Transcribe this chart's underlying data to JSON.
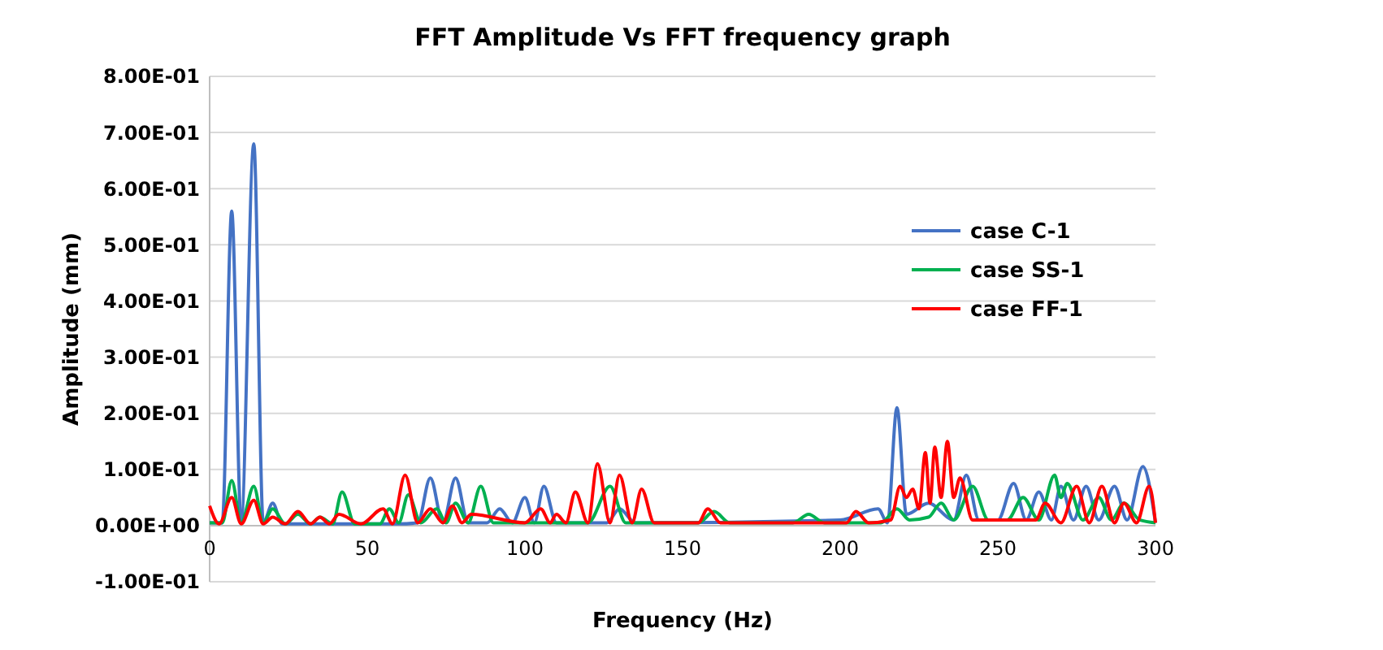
{
  "chart_data": {
    "type": "line",
    "title": "FFT Amplitude Vs FFT frequency graph",
    "xlabel": "Frequency (Hz)",
    "ylabel": "Amplitude (mm)",
    "xlim": [
      0,
      300
    ],
    "xticks": [
      0,
      50,
      100,
      150,
      200,
      250,
      300
    ],
    "ylim": [
      -0.1,
      0.8
    ],
    "yticks": [
      {
        "value": -0.1,
        "label": "-1.00E-01"
      },
      {
        "value": 0,
        "label": "0.00E+00"
      },
      {
        "value": 0.1,
        "label": "1.00E-01"
      },
      {
        "value": 0.2,
        "label": "2.00E-01"
      },
      {
        "value": 0.3,
        "label": "3.00E-01"
      },
      {
        "value": 0.4,
        "label": "4.00E-01"
      },
      {
        "value": 0.5,
        "label": "5.00E-01"
      },
      {
        "value": 0.6,
        "label": "6.00E-01"
      },
      {
        "value": 0.7,
        "label": "7.00E-01"
      },
      {
        "value": 0.8,
        "label": "8.00E-01"
      }
    ],
    "grid": "y",
    "legend": "right",
    "marker": "none",
    "line_style": "solid",
    "series": [
      {
        "name": "case C-1",
        "color": "#4472c4",
        "x": [
          0,
          4,
          7,
          10,
          14,
          17,
          20,
          23,
          60,
          66,
          70,
          74,
          78,
          82,
          88,
          92,
          96,
          100,
          103,
          106,
          110,
          126,
          130,
          135,
          200,
          212,
          215,
          218,
          221,
          228,
          236,
          240,
          244,
          250,
          255,
          259,
          263,
          267,
          270,
          274,
          278,
          282,
          287,
          291,
          296,
          300
        ],
        "values": [
          0.005,
          0.005,
          0.56,
          0.005,
          0.68,
          0.005,
          0.04,
          0.003,
          0.003,
          0.005,
          0.085,
          0.005,
          0.085,
          0.005,
          0.005,
          0.03,
          0.005,
          0.05,
          0.005,
          0.07,
          0.005,
          0.005,
          0.03,
          0.005,
          0.01,
          0.03,
          0.005,
          0.21,
          0.02,
          0.04,
          0.01,
          0.09,
          0.01,
          0.01,
          0.075,
          0.01,
          0.06,
          0.01,
          0.07,
          0.01,
          0.07,
          0.01,
          0.07,
          0.01,
          0.105,
          0.005
        ]
      },
      {
        "name": "case SS-1",
        "color": "#00b050",
        "x": [
          0,
          4,
          7,
          10,
          14,
          17,
          20,
          24,
          28,
          32,
          35,
          39,
          42,
          46,
          54,
          57,
          60,
          63,
          67,
          72,
          75,
          78,
          82,
          86,
          90,
          120,
          127,
          132,
          155,
          160,
          165,
          185,
          190,
          195,
          213,
          218,
          222,
          228,
          232,
          236,
          242,
          247,
          253,
          258,
          263,
          268,
          270,
          272,
          277,
          282,
          286,
          290,
          295,
          300
        ],
        "values": [
          0.005,
          0.005,
          0.08,
          0.005,
          0.07,
          0.005,
          0.03,
          0.003,
          0.02,
          0.003,
          0.015,
          0.003,
          0.06,
          0.003,
          0.003,
          0.03,
          0.005,
          0.055,
          0.005,
          0.03,
          0.005,
          0.04,
          0.005,
          0.07,
          0.005,
          0.005,
          0.07,
          0.005,
          0.005,
          0.025,
          0.005,
          0.005,
          0.02,
          0.005,
          0.005,
          0.03,
          0.01,
          0.015,
          0.04,
          0.01,
          0.07,
          0.01,
          0.01,
          0.05,
          0.01,
          0.09,
          0.05,
          0.075,
          0.01,
          0.05,
          0.01,
          0.04,
          0.01,
          0.005
        ]
      },
      {
        "name": "case FF-1",
        "color": "#ff0000",
        "x": [
          0,
          3,
          7,
          10,
          14,
          17,
          20,
          24,
          28,
          32,
          35,
          38,
          41,
          48,
          55,
          58,
          62,
          66,
          70,
          74,
          77,
          80,
          83,
          100,
          105,
          108,
          110,
          113,
          116,
          120,
          123,
          127,
          130,
          134,
          137,
          141,
          155,
          158,
          162,
          202,
          205,
          209,
          216,
          219,
          221,
          223,
          225,
          227,
          228.5,
          230,
          232,
          234,
          236,
          238,
          242,
          262,
          265,
          270,
          275,
          279,
          283,
          287,
          290,
          294,
          298,
          300
        ],
        "values": [
          0.035,
          0.003,
          0.05,
          0.003,
          0.045,
          0.003,
          0.015,
          0.003,
          0.025,
          0.003,
          0.015,
          0.003,
          0.02,
          0.003,
          0.03,
          0.003,
          0.09,
          0.005,
          0.03,
          0.005,
          0.035,
          0.005,
          0.02,
          0.005,
          0.03,
          0.005,
          0.02,
          0.005,
          0.06,
          0.005,
          0.11,
          0.005,
          0.09,
          0.005,
          0.065,
          0.005,
          0.005,
          0.03,
          0.005,
          0.005,
          0.025,
          0.005,
          0.01,
          0.07,
          0.05,
          0.065,
          0.03,
          0.13,
          0.04,
          0.14,
          0.05,
          0.15,
          0.05,
          0.085,
          0.01,
          0.01,
          0.04,
          0.005,
          0.07,
          0.005,
          0.07,
          0.005,
          0.04,
          0.005,
          0.07,
          0.005
        ]
      }
    ]
  }
}
